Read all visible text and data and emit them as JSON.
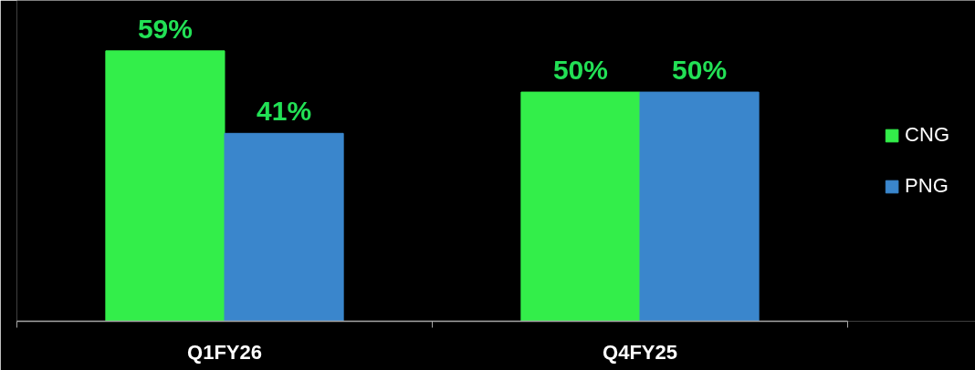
{
  "chart_data": {
    "type": "bar",
    "categories": [
      "Q1FY26",
      "Q4FY25"
    ],
    "series": [
      {
        "name": "CNG",
        "color": "#33ee4a",
        "values": [
          59,
          50
        ],
        "value_labels": [
          "59%",
          "50%"
        ]
      },
      {
        "name": "PNG",
        "color": "#3a86cc",
        "values": [
          41,
          50
        ],
        "value_labels": [
          "41%",
          "50%"
        ]
      }
    ],
    "ylim": [
      0,
      70
    ],
    "tick_labels": "x",
    "legend": "right"
  }
}
